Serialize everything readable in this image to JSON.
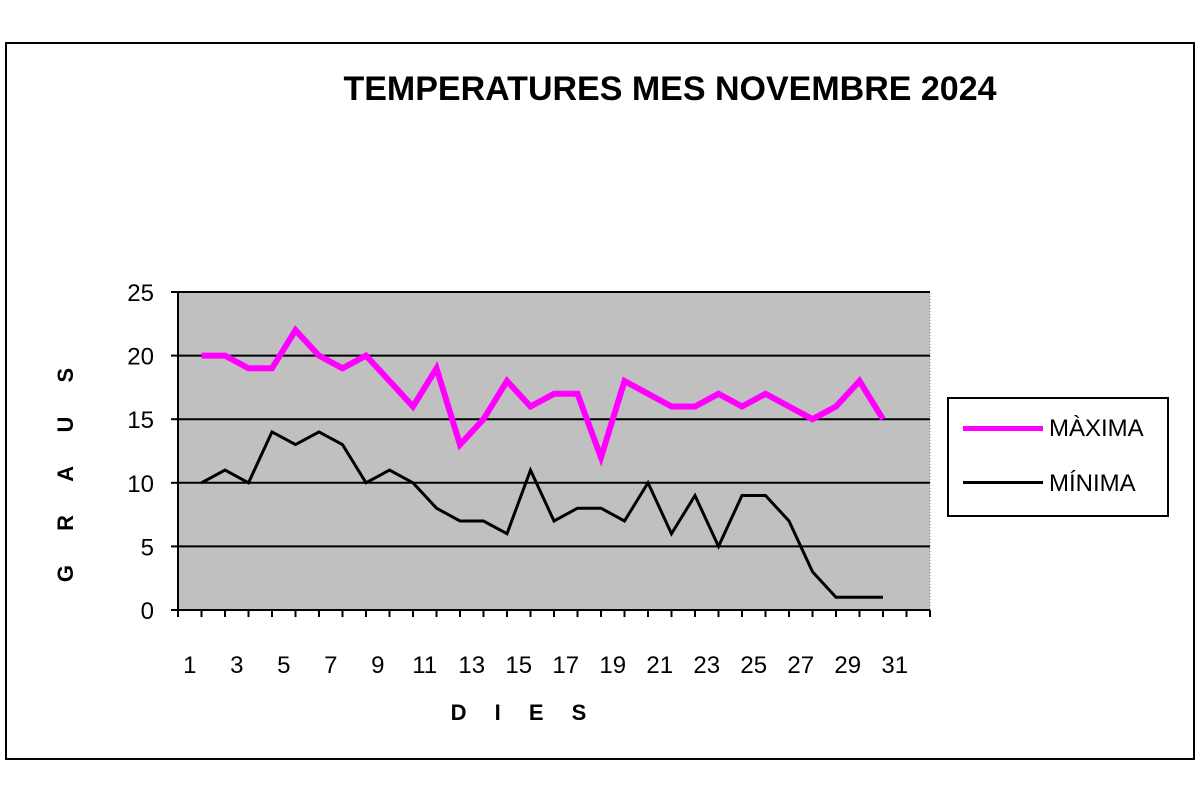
{
  "chart_data": {
    "type": "line",
    "title": "TEMPERATURES MES NOVEMBRE 2024",
    "xlabel": "D I E S",
    "ylabel": "G R A U S",
    "ylim": [
      0,
      25
    ],
    "yticks": [
      0,
      5,
      10,
      15,
      20,
      25
    ],
    "xticks": [
      1,
      3,
      5,
      7,
      9,
      11,
      13,
      15,
      17,
      19,
      21,
      23,
      25,
      27,
      29,
      31
    ],
    "grid": "horizontal",
    "plot_background": "#c0c0c0",
    "legend_position": "right",
    "x": [
      1,
      2,
      3,
      4,
      5,
      6,
      7,
      8,
      9,
      10,
      11,
      12,
      13,
      14,
      15,
      16,
      17,
      18,
      19,
      20,
      21,
      22,
      23,
      24,
      25,
      26,
      27,
      28,
      29,
      30
    ],
    "series": [
      {
        "name": "MÀXIMA",
        "color": "#ff00ff",
        "values": [
          20,
          20,
          19,
          19,
          22,
          20,
          19,
          20,
          18,
          16,
          19,
          13,
          15,
          18,
          16,
          17,
          17,
          12,
          18,
          17,
          16,
          16,
          17,
          16,
          17,
          16,
          15,
          16,
          18,
          15
        ]
      },
      {
        "name": "MÍNIMA",
        "color": "#000000",
        "values": [
          10,
          11,
          10,
          14,
          13,
          14,
          13,
          10,
          11,
          10,
          8,
          7,
          7,
          6,
          11,
          7,
          8,
          8,
          7,
          10,
          6,
          9,
          5,
          9,
          9,
          7,
          3,
          1,
          1,
          1
        ]
      }
    ]
  }
}
